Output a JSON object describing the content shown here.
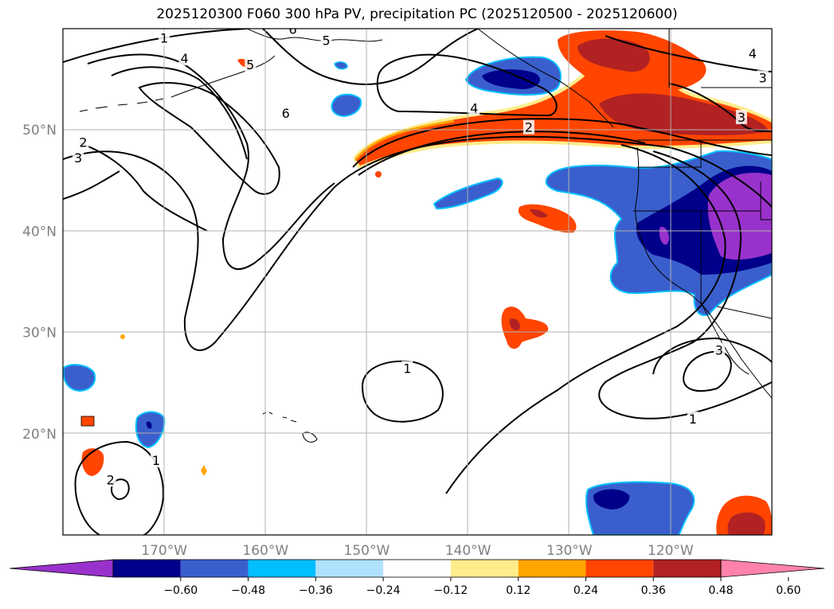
{
  "chart_data": {
    "type": "map-contour",
    "title": "2025120300 F060 300 hPa PV, precipitation PC (2025120500 - 2025120600)",
    "x_range_lon": [
      -180,
      -110
    ],
    "y_range_lat": [
      10,
      60
    ],
    "lat_ticks": [
      {
        "lat": 50,
        "label": "50°N"
      },
      {
        "lat": 40,
        "label": "40°N"
      },
      {
        "lat": 30,
        "label": "30°N"
      },
      {
        "lat": 20,
        "label": "20°N"
      }
    ],
    "lon_ticks": [
      {
        "lon": -170,
        "label": "170°W"
      },
      {
        "lon": -160,
        "label": "160°W"
      },
      {
        "lon": -150,
        "label": "150°W"
      },
      {
        "lon": -140,
        "label": "140°W"
      },
      {
        "lon": -130,
        "label": "130°W"
      },
      {
        "lon": -120,
        "label": "120°W"
      }
    ],
    "pv_contour_labels": [
      {
        "text": "1",
        "lon": -170,
        "lat": 59
      },
      {
        "text": "4",
        "lon": -168,
        "lat": 57
      },
      {
        "text": "5",
        "lon": -161.5,
        "lat": 56.4
      },
      {
        "text": "6",
        "lon": -157.3,
        "lat": 59.9
      },
      {
        "text": "5",
        "lon": -154,
        "lat": 58.8
      },
      {
        "text": "6",
        "lon": -158,
        "lat": 51.6
      },
      {
        "text": "2",
        "lon": -178,
        "lat": 48.7
      },
      {
        "text": "3",
        "lon": -178.5,
        "lat": 47.2
      },
      {
        "text": "4",
        "lon": -139.4,
        "lat": 52.1
      },
      {
        "text": "2",
        "lon": -134,
        "lat": 50.2
      },
      {
        "text": "3",
        "lon": -113,
        "lat": 51.2
      },
      {
        "text": "4",
        "lon": -111.9,
        "lat": 57.5
      },
      {
        "text": "3",
        "lon": -110.9,
        "lat": 55.1
      },
      {
        "text": "1",
        "lon": -146,
        "lat": 26.4
      },
      {
        "text": "1",
        "lon": -117.8,
        "lat": 21.4
      },
      {
        "text": "3",
        "lon": -115.2,
        "lat": 28.2
      },
      {
        "text": "2",
        "lon": -175.3,
        "lat": 15.4
      },
      {
        "text": "1",
        "lon": -170.8,
        "lat": 17.3
      }
    ],
    "colorbar": {
      "ticks": [
        "−0.60",
        "−0.48",
        "−0.36",
        "−0.24",
        "−0.12",
        "0.12",
        "0.24",
        "0.36",
        "0.48",
        "0.60"
      ],
      "levels": [
        -0.72,
        -0.6,
        -0.48,
        -0.36,
        -0.24,
        -0.12,
        0.12,
        0.24,
        0.36,
        0.48,
        0.6,
        0.72
      ],
      "colors": [
        "#9932cc",
        "#00008b",
        "#3a5fcd",
        "#00bfff",
        "#b0e2ff",
        "#ffffff",
        "#ffec8b",
        "#ffa500",
        "#ff4500",
        "#b22222",
        "#ff82ab"
      ],
      "extend": "both"
    }
  }
}
